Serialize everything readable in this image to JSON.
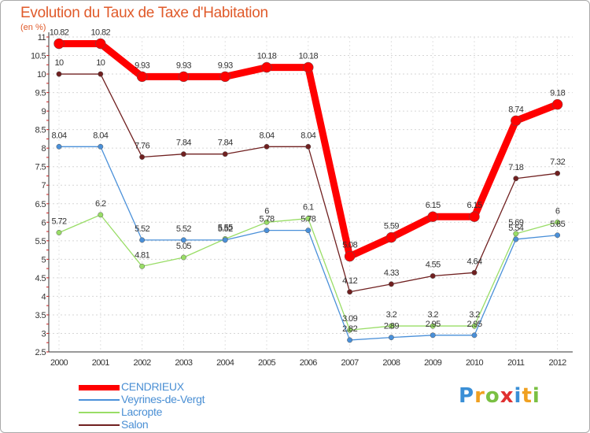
{
  "title": "Evolution du Taux de Taxe d'Habitation",
  "unit_label": "(en %)",
  "logo_text": "Proxiti",
  "chart_data": {
    "type": "line",
    "title": "Evolution du Taux de Taxe d'Habitation",
    "ylabel": "(en %)",
    "x": [
      "2000",
      "2001",
      "2002",
      "2003",
      "2004",
      "2005",
      "2006",
      "2007",
      "2008",
      "2009",
      "2010",
      "2011",
      "2012"
    ],
    "ylim": [
      2.5,
      11
    ],
    "yticks": [
      "2.5",
      "3",
      "3.5",
      "4",
      "4.5",
      "5",
      "5.5",
      "6",
      "6.5",
      "7",
      "7.5",
      "8",
      "8.5",
      "9",
      "9.5",
      "10",
      "10.5",
      "11"
    ],
    "legend_position": "bottom-left",
    "series": [
      {
        "name": "CENDRIEUX",
        "color": "#ff0000",
        "values": [
          10.82,
          10.82,
          9.93,
          9.93,
          9.93,
          10.18,
          10.18,
          5.08,
          5.59,
          6.15,
          6.15,
          8.74,
          9.18
        ],
        "labels": [
          "10.82",
          "10.82",
          "9.93",
          "9.93",
          "9.93",
          "10.18",
          "10.18",
          "5.08",
          "5.59",
          "6.15",
          "6.15",
          "8.74",
          "9.18"
        ]
      },
      {
        "name": "Veyrines-de-Vergt",
        "color": "#4a90d9",
        "values": [
          8.04,
          8.04,
          5.52,
          5.52,
          5.52,
          5.78,
          5.78,
          2.82,
          2.89,
          2.95,
          2.95,
          5.54,
          5.65
        ],
        "labels": [
          "8.04",
          "8.04",
          "5.52",
          "5.52",
          "5.52",
          "5.78",
          "5.78",
          "2.82",
          "2.89",
          "2.95",
          "2.95",
          "5.54",
          "5.65"
        ]
      },
      {
        "name": "Lacropte",
        "color": "#99dd66",
        "values": [
          5.72,
          6.2,
          4.81,
          5.05,
          5.55,
          6,
          6.1,
          3.09,
          3.2,
          3.2,
          3.2,
          5.69,
          6
        ],
        "labels": [
          "5.72",
          "6.2",
          "4.81",
          "5.05",
          "5.55",
          "6",
          "6.1",
          "3.09",
          "3.2",
          "3.2",
          "3.2",
          "5.69",
          "6"
        ]
      },
      {
        "name": "Salon",
        "color": "#702020",
        "values": [
          10,
          10,
          7.76,
          7.84,
          7.84,
          8.04,
          8.04,
          4.12,
          4.33,
          4.55,
          4.64,
          7.18,
          7.32
        ],
        "labels": [
          "10",
          "10",
          "7.76",
          "7.84",
          "7.84",
          "8.04",
          "8.04",
          "4.12",
          "4.33",
          "4.55",
          "4.64",
          "7.18",
          "7.32"
        ]
      }
    ]
  }
}
